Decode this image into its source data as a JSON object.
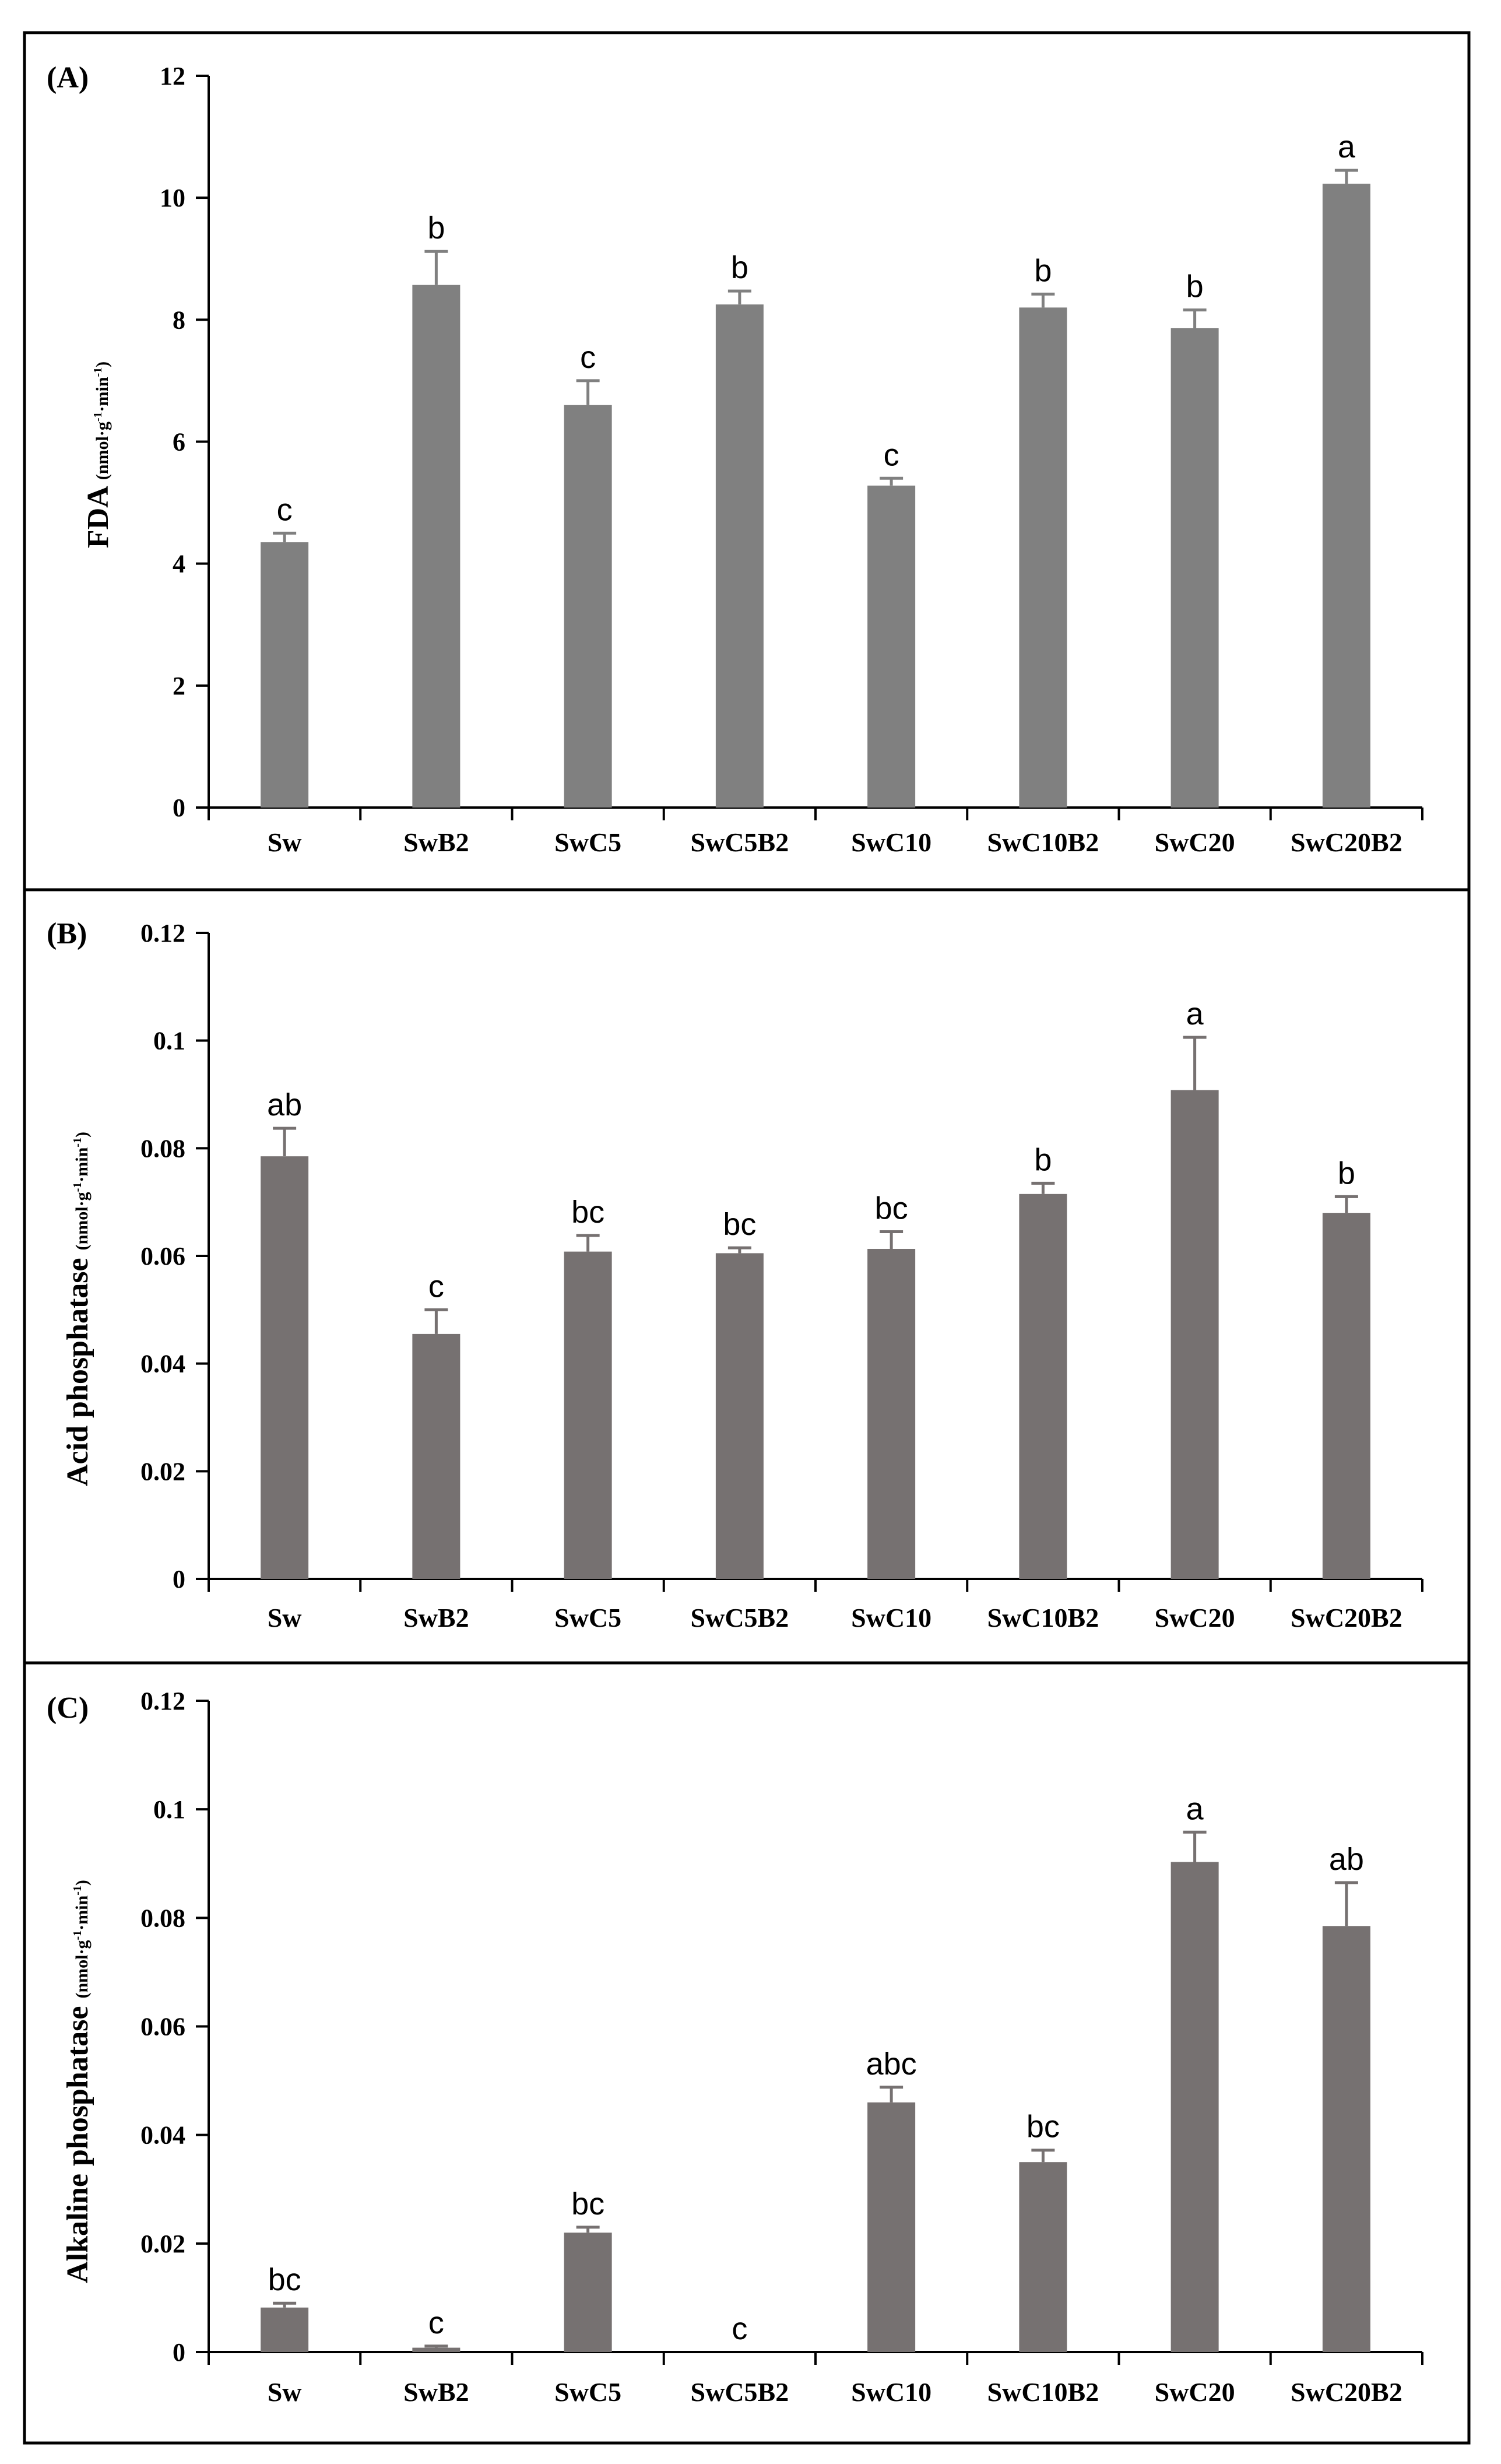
{
  "chart_data": [
    {
      "type": "bar",
      "panel": "(A)",
      "ylabel": "FDA",
      "ylabel_units": "(nmol·g-1·min-1)",
      "categories": [
        "Sw",
        "SwB2",
        "SwC5",
        "SwC5B2",
        "SwC10",
        "SwC10B2",
        "SwC20",
        "SwC20B2"
      ],
      "values": [
        4.35,
        8.57,
        6.6,
        8.25,
        5.28,
        8.2,
        7.86,
        10.23
      ],
      "errors": [
        0.15,
        0.55,
        0.4,
        0.22,
        0.12,
        0.22,
        0.3,
        0.22
      ],
      "significance": [
        "c",
        "b",
        "c",
        "b",
        "c",
        "b",
        "b",
        "a"
      ],
      "ylim": [
        0,
        12
      ],
      "yticks": [
        0,
        2,
        4,
        6,
        8,
        10,
        12
      ],
      "ytick_labels": [
        "0",
        "2",
        "4",
        "6",
        "8",
        "10",
        "12"
      ],
      "bar_color": "#808080",
      "grid": false
    },
    {
      "type": "bar",
      "panel": "(B)",
      "ylabel": "Acid phosphatase",
      "ylabel_units": "(nmol·g-1·min-1)",
      "categories": [
        "Sw",
        "SwB2",
        "SwC5",
        "SwC5B2",
        "SwC10",
        "SwC10B2",
        "SwC20",
        "SwC20B2"
      ],
      "values": [
        0.0785,
        0.0455,
        0.0608,
        0.0605,
        0.0613,
        0.0715,
        0.0908,
        0.068
      ],
      "errors": [
        0.0052,
        0.0045,
        0.003,
        0.001,
        0.0032,
        0.002,
        0.0098,
        0.003
      ],
      "significance": [
        "ab",
        "c",
        "bc",
        "bc",
        "bc",
        "b",
        "a",
        "b"
      ],
      "ylim": [
        0,
        0.12
      ],
      "yticks": [
        0,
        0.02,
        0.04,
        0.06,
        0.08,
        0.1,
        0.12
      ],
      "ytick_labels": [
        "0",
        "0.02",
        "0.04",
        "0.06",
        "0.08",
        "0.1",
        "0.12"
      ],
      "bar_color": "#767171",
      "grid": false
    },
    {
      "type": "bar",
      "panel": "(C)",
      "ylabel": "Alkaline phosphatase",
      "ylabel_units": "(nmol·g-1·min-1)",
      "categories": [
        "Sw",
        "SwB2",
        "SwC5",
        "SwC5B2",
        "SwC10",
        "SwC10B2",
        "SwC20",
        "SwC20B2"
      ],
      "values": [
        0.0082,
        0.0008,
        0.022,
        0.0,
        0.046,
        0.035,
        0.0903,
        0.0785
      ],
      "errors": [
        0.0008,
        0.0003,
        0.001,
        0.0,
        0.0028,
        0.0022,
        0.0055,
        0.008
      ],
      "significance": [
        "bc",
        "c",
        "bc",
        "c",
        "abc",
        "bc",
        "a",
        "ab"
      ],
      "ylim": [
        0,
        0.12
      ],
      "yticks": [
        0,
        0.02,
        0.04,
        0.06,
        0.08,
        0.1,
        0.12
      ],
      "ytick_labels": [
        "0",
        "0.02",
        "0.04",
        "0.06",
        "0.08",
        "0.1",
        "0.12"
      ],
      "bar_color": "#767171",
      "grid": false
    }
  ]
}
